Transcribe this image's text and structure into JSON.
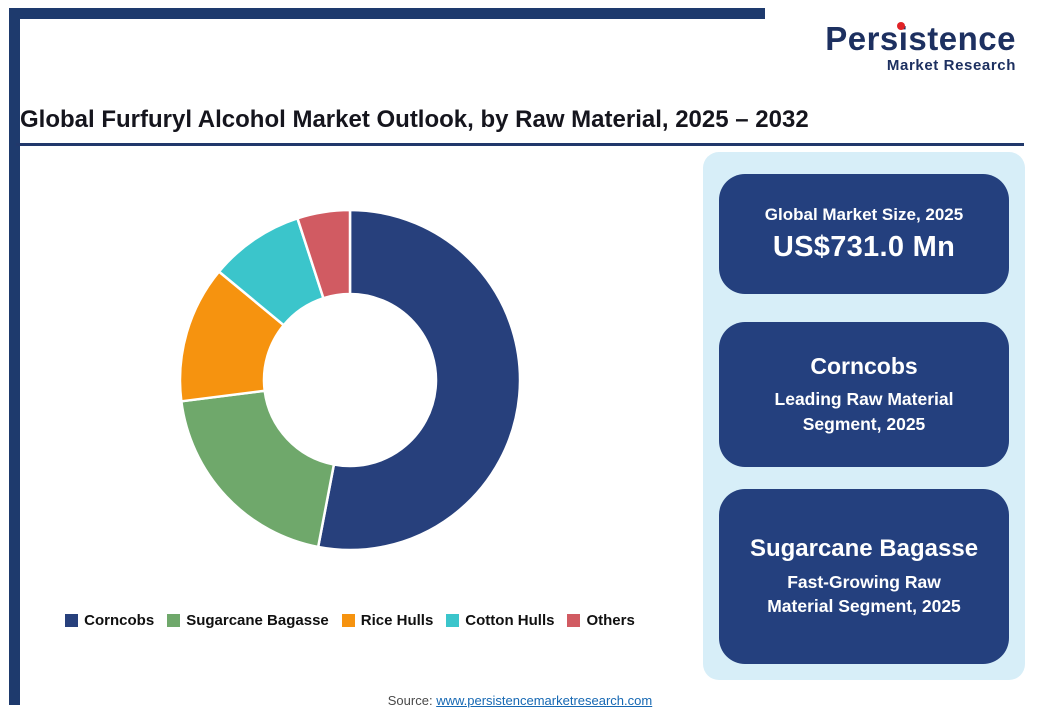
{
  "logo": {
    "brand": "Persistence",
    "subtitle": "Market Research",
    "navy": "#1d3060",
    "red": "#e02327"
  },
  "header": {
    "title": "Global Furfuryl Alcohol Market Outlook, by Raw Material, 2025 – 2032"
  },
  "chart_data": {
    "type": "pie",
    "donut": true,
    "title": "Global Furfuryl Alcohol Market Outlook, by Raw Material, 2025 – 2032",
    "start_angle_deg": 0,
    "legend_position": "bottom",
    "segments": [
      {
        "label": "Corncobs",
        "value": 53,
        "color": "#27407c"
      },
      {
        "label": "Sugarcane Bagasse",
        "value": 20,
        "color": "#6fa86b"
      },
      {
        "label": "Rice Hulls",
        "value": 13,
        "color": "#f6930f"
      },
      {
        "label": "Cotton Hulls",
        "value": 9,
        "color": "#3bc5cb"
      },
      {
        "label": "Others",
        "value": 5,
        "color": "#d15b62"
      }
    ]
  },
  "panel": {
    "background": "#d7eef8",
    "card_background": "#24407e",
    "cards": [
      {
        "line1": "Global Market Size, 2025",
        "line2": "US$731.0 Mn"
      },
      {
        "line1": "Corncobs",
        "line2": "Leading Raw Material Segment, 2025"
      },
      {
        "line1": "Sugarcane Bagasse",
        "line2": "Fast-Growing Raw Material Segment, 2025"
      }
    ]
  },
  "footer": {
    "source_label": "Source: ",
    "source_link": "www.persistencemarketresearch.com"
  }
}
